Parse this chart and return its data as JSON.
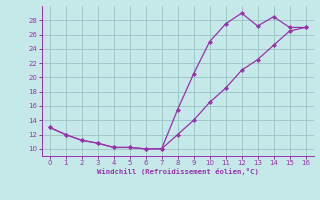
{
  "xlabel": "Windchill (Refroidissement éolien,°C)",
  "xlim": [
    -0.5,
    16.5
  ],
  "ylim": [
    9,
    30
  ],
  "yticks": [
    10,
    12,
    14,
    16,
    18,
    20,
    22,
    24,
    26,
    28
  ],
  "xticks": [
    0,
    1,
    2,
    3,
    4,
    5,
    6,
    7,
    8,
    9,
    10,
    11,
    12,
    13,
    14,
    15,
    16
  ],
  "background_color": "#c5e8e8",
  "grid_color": "#a0c8c8",
  "line_color": "#9933aa",
  "series1_x": [
    0,
    1,
    2,
    3,
    4,
    5,
    6,
    7,
    8,
    9,
    10,
    11,
    12,
    13,
    14,
    15,
    16
  ],
  "series1_y": [
    13,
    12,
    11.2,
    10.8,
    10.2,
    10.2,
    10,
    10,
    15.5,
    20.5,
    25,
    27.5,
    29,
    27.2,
    28.5,
    27,
    27
  ],
  "series2_x": [
    0,
    1,
    2,
    3,
    4,
    5,
    6,
    7,
    8,
    9,
    10,
    11,
    12,
    13,
    14,
    15,
    16
  ],
  "series2_y": [
    13,
    12,
    11.2,
    10.8,
    10.2,
    10.2,
    10,
    10,
    12,
    14,
    16.5,
    18.5,
    21,
    22.5,
    24.5,
    26.5,
    27
  ]
}
